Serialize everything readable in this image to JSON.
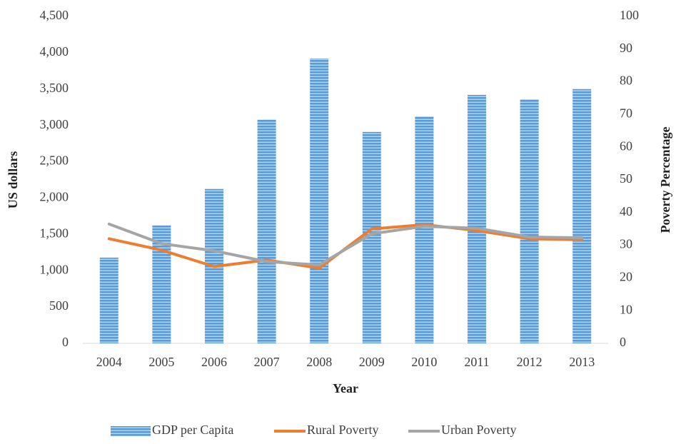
{
  "chart_data": {
    "type": "bar_line",
    "xlabel": "Year",
    "ylabel": "US dollars",
    "y2label": "Poverty Percentage",
    "categories": [
      "2004",
      "2005",
      "2006",
      "2007",
      "2008",
      "2009",
      "2010",
      "2011",
      "2012",
      "2013"
    ],
    "series": [
      {
        "name": "GDP per Capita",
        "type": "bar",
        "color": "#5b9bd5",
        "values": [
          1180,
          1625,
          2125,
          3080,
          3920,
          2910,
          3125,
          3420,
          3360,
          3500
        ]
      },
      {
        "name": "Rural Poverty",
        "type": "line",
        "axis": "y2",
        "color": "#ed7d31",
        "values": [
          32,
          28.5,
          23.5,
          25.5,
          23,
          35,
          36.3,
          34.5,
          32,
          31.7
        ]
      },
      {
        "name": "Urban Poverty",
        "type": "line",
        "axis": "y2",
        "color": "#a5a5a5",
        "values": [
          36.5,
          30.5,
          28.3,
          25,
          24,
          33.5,
          35.8,
          35.2,
          32.5,
          32.3
        ]
      }
    ],
    "ylim": [
      0,
      4500
    ],
    "yticks": [
      0,
      500,
      {
        "value": 1000,
        "label": "1,000"
      },
      {
        "value": 1500,
        "label": "1,500"
      },
      {
        "value": 2000,
        "label": "2,000"
      },
      {
        "value": 2500,
        "label": "2,500"
      },
      {
        "value": 3000,
        "label": "3,000"
      },
      {
        "value": 3500,
        "label": "3,500"
      },
      {
        "value": 4000,
        "label": "4,000"
      },
      {
        "value": 4500,
        "label": "4,500"
      }
    ],
    "y2lim": [
      0,
      100
    ],
    "y2ticks": [
      0,
      10,
      20,
      30,
      40,
      50,
      60,
      70,
      80,
      90,
      100
    ],
    "legend": "bottom"
  }
}
